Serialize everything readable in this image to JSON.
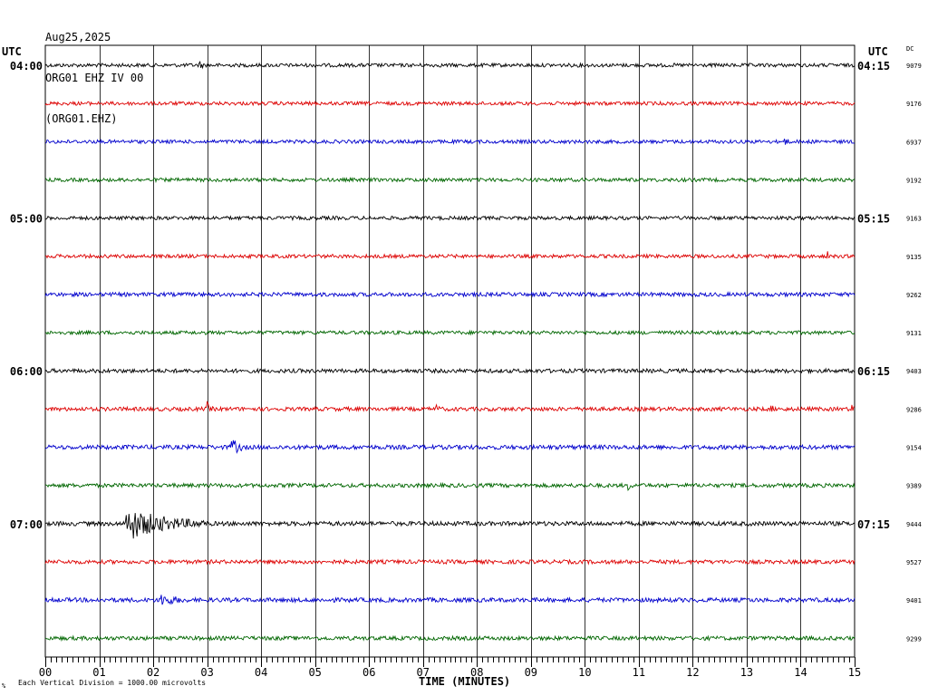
{
  "header": {
    "date": "Aug25,2025",
    "station": "ORG01 EHZ IV 00",
    "channel": "(ORG01.EHZ)"
  },
  "utc_left": "UTC",
  "utc_right": "UTC",
  "dc_label": "DC",
  "footer": {
    "mark": "%",
    "note": "Each Vertical Division = 1000.00 microvolts"
  },
  "colors": {
    "black": "#000000",
    "red": "#dd0000",
    "blue": "#0000cc",
    "green": "#006600",
    "grid": "#000000"
  },
  "chart_data": {
    "type": "line",
    "title": "",
    "xlabel": "TIME (MINUTES)",
    "ylabel": "",
    "xlim": [
      0,
      15
    ],
    "x_ticks": [
      "00",
      "01",
      "02",
      "03",
      "04",
      "05",
      "06",
      "07",
      "08",
      "09",
      "10",
      "11",
      "12",
      "13",
      "14",
      "15"
    ],
    "row_colors": [
      "black",
      "red",
      "blue",
      "green"
    ],
    "left_labels": [
      "04:00",
      "",
      "",
      "",
      "05:00",
      "",
      "",
      "",
      "06:00",
      "",
      "",
      "",
      "07:00",
      "",
      "",
      ""
    ],
    "right_labels": [
      "04:15",
      "",
      "",
      "",
      "05:15",
      "",
      "",
      "",
      "06:15",
      "",
      "",
      "",
      "07:15",
      "",
      "",
      ""
    ],
    "dc_values": [
      "9079",
      "9176",
      "6937",
      "9192",
      "9163",
      "9135",
      "9262",
      "9131",
      "9403",
      "9286",
      "9154",
      "9389",
      "9444",
      "9527",
      "9401",
      "9299"
    ],
    "rows": [
      {
        "noise": 2,
        "events": [
          {
            "t": 2.85,
            "amp": 4,
            "dur": 0.1
          }
        ]
      },
      {
        "noise": 2,
        "events": []
      },
      {
        "noise": 2,
        "events": [
          {
            "t": 13.7,
            "amp": 4,
            "dur": 0.1
          }
        ]
      },
      {
        "noise": 2,
        "events": []
      },
      {
        "noise": 2,
        "events": []
      },
      {
        "noise": 2,
        "events": [
          {
            "t": 14.5,
            "amp": 4,
            "dur": 0.1
          }
        ]
      },
      {
        "noise": 2.2,
        "events": []
      },
      {
        "noise": 2,
        "events": []
      },
      {
        "noise": 2.2,
        "events": []
      },
      {
        "noise": 2.2,
        "events": [
          {
            "t": 3.0,
            "amp": 6,
            "dur": 0.1
          },
          {
            "t": 7.25,
            "amp": 7,
            "dur": 0.05
          },
          {
            "t": 10.05,
            "amp": 8,
            "dur": 0.1
          },
          {
            "t": 13.45,
            "amp": 8,
            "dur": 0.05
          },
          {
            "t": 14.95,
            "amp": 9,
            "dur": 0.05
          }
        ]
      },
      {
        "noise": 2.4,
        "events": [
          {
            "t": 3.45,
            "amp": 10,
            "dur": 0.25
          }
        ]
      },
      {
        "noise": 2.2,
        "events": [
          {
            "t": 10.8,
            "amp": 4,
            "dur": 0.1
          }
        ]
      },
      {
        "noise": 2.4,
        "events": [
          {
            "t": 1.5,
            "amp": 18,
            "dur": 1.5
          }
        ]
      },
      {
        "noise": 2.2,
        "events": []
      },
      {
        "noise": 2.4,
        "events": [
          {
            "t": 2.1,
            "amp": 7,
            "dur": 0.5
          }
        ]
      },
      {
        "noise": 2.2,
        "events": []
      }
    ]
  }
}
